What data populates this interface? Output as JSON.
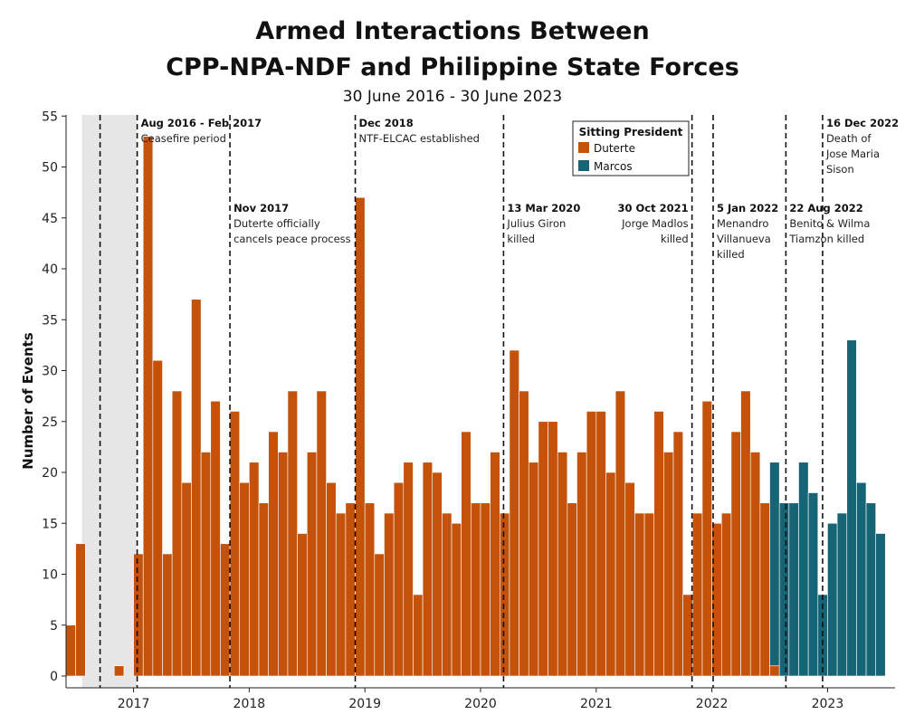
{
  "title_line1": "Armed Interactions Between",
  "title_line2": "CPP-NPA-NDF and Philippine State Forces",
  "subtitle": "30 June 2016 - 30 June 2023",
  "colors": {
    "Duterte": "#c4520a",
    "Marcos": "#156577",
    "ceasefire_shade": "#e6e6e6"
  },
  "chart_data": {
    "type": "bar",
    "ylabel": "Number of Events",
    "xlabel": "",
    "ylim": [
      -1,
      56
    ],
    "yticks": [
      0,
      5,
      10,
      15,
      20,
      25,
      30,
      35,
      40,
      45,
      50,
      55
    ],
    "grid": false,
    "start_month": "2016-06",
    "year_ticks": [
      "2017",
      "2018",
      "2019",
      "2020",
      "2021",
      "2022",
      "2023"
    ],
    "series": [
      {
        "name": "Duterte",
        "values": [
          5,
          13,
          0,
          0,
          0,
          1,
          0,
          12,
          53,
          31,
          12,
          28,
          19,
          37,
          22,
          27,
          13,
          26,
          19,
          21,
          17,
          24,
          22,
          28,
          14,
          22,
          28,
          19,
          16,
          17,
          47,
          17,
          12,
          16,
          19,
          21,
          8,
          21,
          20,
          16,
          15,
          24,
          17,
          17,
          22,
          16,
          32,
          28,
          21,
          25,
          25,
          22,
          17,
          22,
          26,
          26,
          20,
          28,
          19,
          16,
          16,
          26,
          22,
          24,
          8,
          16,
          27,
          15,
          16,
          24,
          28,
          22,
          17,
          1,
          0,
          0,
          0,
          0,
          0,
          0,
          0,
          0,
          0,
          0,
          0,
          0
        ]
      },
      {
        "name": "Marcos",
        "values": [
          0,
          0,
          0,
          0,
          0,
          0,
          0,
          0,
          0,
          0,
          0,
          0,
          0,
          0,
          0,
          0,
          0,
          0,
          0,
          0,
          0,
          0,
          0,
          0,
          0,
          0,
          0,
          0,
          0,
          0,
          0,
          0,
          0,
          0,
          0,
          0,
          0,
          0,
          0,
          0,
          0,
          0,
          0,
          0,
          0,
          0,
          0,
          0,
          0,
          0,
          0,
          0,
          0,
          0,
          0,
          0,
          0,
          0,
          0,
          0,
          0,
          0,
          0,
          0,
          0,
          0,
          0,
          0,
          0,
          0,
          0,
          0,
          0,
          20,
          17,
          17,
          21,
          18,
          8,
          15,
          16,
          33,
          19,
          17,
          14,
          0
        ]
      }
    ],
    "shaded_period": {
      "from_month": "2016-08",
      "to_month": "2017-02",
      "label": "Ceasefire period"
    },
    "legend": {
      "title": "Sitting President",
      "items": [
        "Duterte",
        "Marcos"
      ],
      "placement": "top-right"
    },
    "annotations": [
      {
        "date": "2016-08",
        "head": "",
        "body": []
      },
      {
        "date": "2017-02",
        "head": "Aug 2016 - Feb 2017",
        "body": [
          "Ceasefire period"
        ],
        "align": "left"
      },
      {
        "date": "2017-11",
        "head": "Nov 2017",
        "body": [
          "Duterte officially",
          "cancels peace process"
        ],
        "align": "left"
      },
      {
        "date": "2018-12",
        "head": "Dec 2018",
        "body": [
          "NTF-ELCAC established"
        ],
        "align": "left"
      },
      {
        "date": "2020-03-13",
        "head": "13 Mar 2020",
        "body": [
          "Julius Giron",
          "killed"
        ],
        "align": "left"
      },
      {
        "date": "2021-10-30",
        "head": "30 Oct 2021",
        "body": [
          "Jorge Madlos",
          "killed"
        ],
        "align": "right"
      },
      {
        "date": "2022-01-05",
        "head": "5 Jan 2022",
        "body": [
          "Menandro",
          "Villanueva",
          "killed"
        ],
        "align": "left"
      },
      {
        "date": "2022-08-22",
        "head": "22 Aug 2022",
        "body": [
          "Benito & Wilma",
          "Tiamzon killed"
        ],
        "align": "left"
      },
      {
        "date": "2022-12-16",
        "head": "16 Dec 2022",
        "body": [
          "Death of",
          "Jose Maria",
          "Sison"
        ],
        "align": "left"
      }
    ]
  }
}
